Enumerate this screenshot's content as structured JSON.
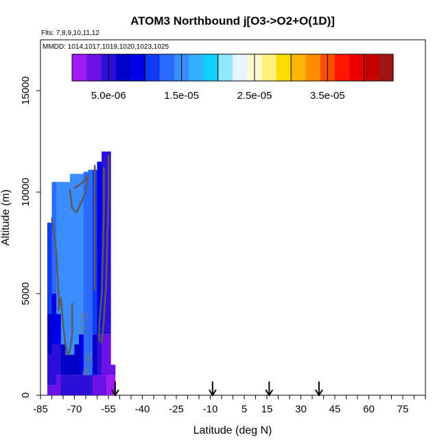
{
  "chart_data": {
    "type": "heatmap",
    "title": "ATOM3 Northbound j[O3->O2+O(1D)]",
    "flights_label": "Flts: 7,8,9,10,11,12",
    "dates_label": "MMDD: 1014,1017,1019,1020,1023,1025",
    "xlabel": "Latitude (deg N)",
    "ylabel": "Altitude (m)",
    "xlim": [
      -85,
      85
    ],
    "ylim": [
      0,
      17500
    ],
    "x_ticks": [
      -85,
      -70,
      -55,
      -40,
      -25,
      -10,
      5,
      15,
      30,
      45,
      60,
      75
    ],
    "y_ticks": [
      0,
      5000,
      10000,
      15000
    ],
    "colorbar": {
      "min": 0,
      "max": 4.4e-05,
      "tick_values": [
        5e-06,
        1.5e-05,
        2.5e-05,
        3.5e-05
      ],
      "tick_labels": [
        "5.0e-06",
        "1.5e-05",
        "2.5e-05",
        "3.5e-05"
      ],
      "colors": [
        "#9e1bf2",
        "#6a12e6",
        "#2d10d8",
        "#0000c8",
        "#0000e6",
        "#0f3cf0",
        "#2a6aff",
        "#3a8cff",
        "#30b0ff",
        "#10d0ff",
        "#90e8ff",
        "#e6f4ff",
        "#fffbd0",
        "#fff07a",
        "#ffdc00",
        "#ffb400",
        "#ff8c00",
        "#ff5000",
        "#ff1400",
        "#e80000",
        "#c80000",
        "#a01414"
      ]
    },
    "arrows_x": [
      -52,
      -9,
      16,
      38
    ],
    "columns": [
      {
        "x0": -82,
        "x1": -80,
        "cells": [
          [
            0,
            500,
            3e-06
          ],
          [
            500,
            2000,
            4e-06
          ],
          [
            2000,
            4000,
            7e-06
          ],
          [
            4000,
            8500,
            1.1e-05
          ]
        ]
      },
      {
        "x0": -80,
        "x1": -78,
        "cells": [
          [
            0,
            500,
            2e-06
          ],
          [
            500,
            2500,
            4e-06
          ],
          [
            2500,
            5000,
            9e-06
          ],
          [
            5000,
            10500,
            1.3e-05
          ]
        ]
      },
      {
        "x0": -78,
        "x1": -76,
        "cells": [
          [
            0,
            1000,
            3e-06
          ],
          [
            1000,
            2500,
            5e-06
          ],
          [
            2500,
            4000,
            9e-06
          ],
          [
            4000,
            10500,
            1.45e-05
          ]
        ]
      },
      {
        "x0": -76,
        "x1": -74,
        "cells": [
          [
            0,
            1000,
            4e-06
          ],
          [
            1000,
            2500,
            6e-06
          ],
          [
            2500,
            10500,
            1.5e-05
          ]
        ]
      },
      {
        "x0": -74,
        "x1": -72,
        "cells": [
          [
            0,
            1000,
            4e-06
          ],
          [
            1000,
            2000,
            6e-06
          ],
          [
            2000,
            10500,
            1.5e-05
          ]
        ]
      },
      {
        "x0": -72,
        "x1": -70,
        "cells": [
          [
            0,
            1000,
            5e-06
          ],
          [
            1000,
            2000,
            6.5e-06
          ],
          [
            2000,
            10900,
            1.55e-05
          ]
        ]
      },
      {
        "x0": -70,
        "x1": -68,
        "cells": [
          [
            0,
            1000,
            5e-06
          ],
          [
            1000,
            2500,
            7e-06
          ],
          [
            2500,
            10900,
            1.5e-05
          ]
        ]
      },
      {
        "x0": -68,
        "x1": -66,
        "cells": [
          [
            0,
            1000,
            4e-06
          ],
          [
            1000,
            3000,
            8e-06
          ],
          [
            3000,
            10900,
            1.45e-05
          ]
        ]
      },
      {
        "x0": -66,
        "x1": -64,
        "cells": [
          [
            0,
            1000,
            5e-06
          ],
          [
            1000,
            11000,
            1.35e-05
          ]
        ]
      },
      {
        "x0": -64,
        "x1": -62,
        "cells": [
          [
            0,
            1000,
            4e-06
          ],
          [
            1000,
            11100,
            1.2e-05
          ]
        ]
      },
      {
        "x0": -62,
        "x1": -60,
        "cells": [
          [
            0,
            1000,
            3e-06
          ],
          [
            1000,
            3000,
            7e-06
          ],
          [
            3000,
            11100,
            1e-05
          ]
        ]
      },
      {
        "x0": -60,
        "x1": -58,
        "cells": [
          [
            0,
            1000,
            3e-06
          ],
          [
            1000,
            3000,
            5e-06
          ],
          [
            3000,
            11500,
            8e-06
          ]
        ]
      },
      {
        "x0": -58,
        "x1": -56,
        "cells": [
          [
            0,
            1000,
            2e-06
          ],
          [
            1000,
            3000,
            3e-06
          ],
          [
            3000,
            12000,
            5e-06
          ]
        ]
      },
      {
        "x0": -56,
        "x1": -54,
        "cells": [
          [
            0,
            1000,
            1e-06
          ],
          [
            1000,
            3000,
            2e-06
          ],
          [
            3000,
            12000,
            4e-06
          ]
        ]
      },
      {
        "x0": -54,
        "x1": -52,
        "cells": [
          [
            0,
            1000,
            1e-06
          ],
          [
            1000,
            1500,
            2e-06
          ]
        ]
      }
    ],
    "contours": [
      {
        "level": 1e-05,
        "points": [
          [
            -70,
            10200
          ],
          [
            -66,
            10500
          ],
          [
            -64,
            10800
          ],
          [
            -65,
            10000
          ],
          [
            -67,
            9500
          ],
          [
            -69,
            9000
          ],
          [
            -71,
            9200
          ],
          [
            -72,
            10100
          ]
        ]
      },
      {
        "level": 1e-05,
        "points": [
          [
            -80,
            8700
          ],
          [
            -79,
            8000
          ],
          [
            -78,
            7000
          ],
          [
            -77,
            5000
          ],
          [
            -77,
            4200
          ],
          [
            -76,
            4800
          ],
          [
            -75,
            3500
          ],
          [
            -74,
            2500
          ],
          [
            -73,
            2000
          ],
          [
            -72,
            2200
          ],
          [
            -71,
            3000
          ],
          [
            -71,
            4500
          ]
        ]
      },
      {
        "level": 5e-06,
        "points": [
          [
            -57,
            11200
          ],
          [
            -57,
            9000
          ],
          [
            -57.5,
            7000
          ],
          [
            -58,
            5000
          ],
          [
            -59,
            3500
          ],
          [
            -59,
            2700
          ]
        ]
      },
      {
        "level": 5e-06,
        "points": [
          [
            -55,
            11800
          ],
          [
            -55,
            9500
          ],
          [
            -55.5,
            7500
          ],
          [
            -56,
            5500
          ],
          [
            -57,
            3700
          ],
          [
            -58,
            2600
          ]
        ]
      },
      {
        "level": 1e-05,
        "points": [
          [
            -61,
            11300
          ],
          [
            -61,
            9000
          ],
          [
            -61,
            7000
          ],
          [
            -61,
            5200
          ]
        ]
      }
    ],
    "contour_labels": [
      {
        "text": "1e-05",
        "x": -65,
        "y": 3500,
        "angle": -80
      },
      {
        "text": "5e-06",
        "x": -63,
        "y": 1500,
        "angle": -80
      }
    ]
  }
}
